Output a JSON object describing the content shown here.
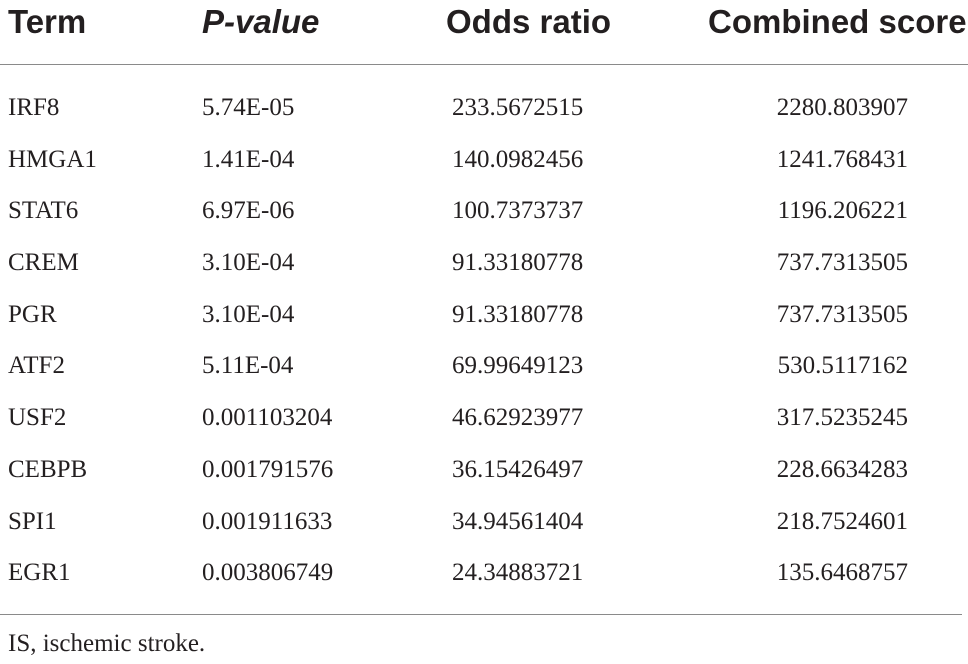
{
  "table": {
    "headers": {
      "term": "Term",
      "p_value": "P-value",
      "odds_ratio": "Odds ratio",
      "combined_score": "Combined score"
    },
    "rows": [
      {
        "term": "IRF8",
        "p_value": "5.74E-05",
        "odds_ratio": "233.5672515",
        "combined_score": "2280.803907"
      },
      {
        "term": "HMGA1",
        "p_value": "1.41E-04",
        "odds_ratio": "140.0982456",
        "combined_score": "1241.768431"
      },
      {
        "term": "STAT6",
        "p_value": "6.97E-06",
        "odds_ratio": "100.7373737",
        "combined_score": "1196.206221"
      },
      {
        "term": "CREM",
        "p_value": "3.10E-04",
        "odds_ratio": "91.33180778",
        "combined_score": "737.7313505"
      },
      {
        "term": "PGR",
        "p_value": "3.10E-04",
        "odds_ratio": "91.33180778",
        "combined_score": "737.7313505"
      },
      {
        "term": "ATF2",
        "p_value": "5.11E-04",
        "odds_ratio": "69.99649123",
        "combined_score": "530.5117162"
      },
      {
        "term": "USF2",
        "p_value": "0.001103204",
        "odds_ratio": "46.62923977",
        "combined_score": "317.5235245"
      },
      {
        "term": "CEBPB",
        "p_value": "0.001791576",
        "odds_ratio": "36.15426497",
        "combined_score": "228.6634283"
      },
      {
        "term": "SPI1",
        "p_value": "0.001911633",
        "odds_ratio": "34.94561404",
        "combined_score": "218.7524601"
      },
      {
        "term": "EGR1",
        "p_value": "0.003806749",
        "odds_ratio": "24.34883721",
        "combined_score": "135.6468757"
      }
    ]
  },
  "footnote": "IS, ischemic stroke."
}
